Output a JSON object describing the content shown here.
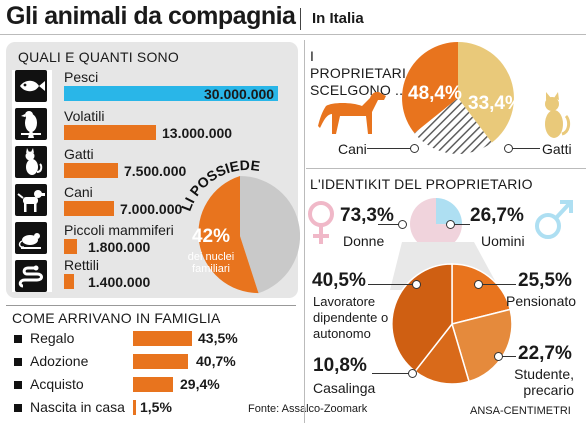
{
  "header": {
    "title": "Gli animali da compagnia",
    "subtitle": "In Italia"
  },
  "colors": {
    "orange": "#E8741E",
    "blue": "#29B6E8",
    "gray": "#C9C9C9",
    "cream": "#E9C97A",
    "pink": "#F0B8C8",
    "lightblue": "#AEDFF2"
  },
  "quanti": {
    "heading": "QUALI E QUANTI SONO",
    "items": [
      {
        "label": "Pesci",
        "value": "30.000.000",
        "icon": "fish-icon"
      },
      {
        "label": "Volatili",
        "value": "13.000.000",
        "icon": "bird-icon"
      },
      {
        "label": "Gatti",
        "value": "7.500.000",
        "icon": "cat-icon"
      },
      {
        "label": "Cani",
        "value": "7.000.000",
        "icon": "dog-icon"
      },
      {
        "label": "Piccoli mammiferi",
        "value": "1.800.000",
        "icon": "mouse-icon"
      },
      {
        "label": "Rettili",
        "value": "1.400.000",
        "icon": "snake-icon"
      }
    ]
  },
  "possiede": {
    "heading": "LI POSSIEDE",
    "pct": "42%",
    "text": "dei nuclei familiari"
  },
  "arrivano": {
    "heading": "COME ARRIVANO IN FAMIGLIA",
    "items": [
      {
        "label": "Regalo",
        "value": "43,5%"
      },
      {
        "label": "Adozione",
        "value": "40,7%"
      },
      {
        "label": "Acquisto",
        "value": "29,4%"
      },
      {
        "label": "Nascita in casa",
        "value": "1,5%"
      }
    ]
  },
  "proprietari": {
    "heading": "I PROPRIETARI SCELGONO ...",
    "cani_pct": "48,4%",
    "gatti_pct": "33,4%",
    "cani_label": "Cani",
    "gatti_label": "Gatti"
  },
  "identikit": {
    "heading": "L'IDENTIKIT DEL PROPRIETARIO",
    "donne_pct": "73,3%",
    "donne_label": "Donne",
    "uomini_pct": "26,7%",
    "uomini_label": "Uomini",
    "lavoratore_pct": "40,5%",
    "lavoratore_label": "Lavoratore dipendente o autonomo",
    "pensionato_pct": "25,5%",
    "pensionato_label": "Pensionato",
    "casalinga_pct": "10,8%",
    "casalinga_label": "Casalinga",
    "studente_pct": "22,7%",
    "studente_label": "Studente, precario"
  },
  "footer": {
    "source": "Fonte: Assalco-Zoomark",
    "credit": "ANSA-CENTIMETRI"
  },
  "chart_data": [
    {
      "type": "bar",
      "title": "QUALI E QUANTI SONO",
      "categories": [
        "Pesci",
        "Volatili",
        "Gatti",
        "Cani",
        "Piccoli mammiferi",
        "Rettili"
      ],
      "values": [
        30000000,
        13000000,
        7500000,
        7000000,
        1800000,
        1400000
      ]
    },
    {
      "type": "pie",
      "title": "LI POSSIEDE",
      "categories": [
        "dei nuclei familiari",
        ""
      ],
      "values": [
        42,
        58
      ]
    },
    {
      "type": "bar",
      "title": "COME ARRIVANO IN FAMIGLIA",
      "categories": [
        "Regalo",
        "Adozione",
        "Acquisto",
        "Nascita in casa"
      ],
      "values": [
        43.5,
        40.7,
        29.4,
        1.5
      ]
    },
    {
      "type": "pie",
      "title": "I PROPRIETARI SCELGONO ...",
      "categories": [
        "Cani",
        "Gatti",
        ""
      ],
      "values": [
        48.4,
        33.4,
        18.2
      ]
    },
    {
      "type": "pie",
      "title": "L'IDENTIKIT DEL PROPRIETARIO",
      "categories": [
        "Donne",
        "Uomini"
      ],
      "values": [
        73.3,
        26.7
      ]
    },
    {
      "type": "pie",
      "title": "",
      "categories": [
        "Lavoratore dipendente o autonomo",
        "Pensionato",
        "Studente, precario",
        "Casalinga"
      ],
      "values": [
        40.5,
        25.5,
        22.7,
        10.8
      ]
    }
  ]
}
